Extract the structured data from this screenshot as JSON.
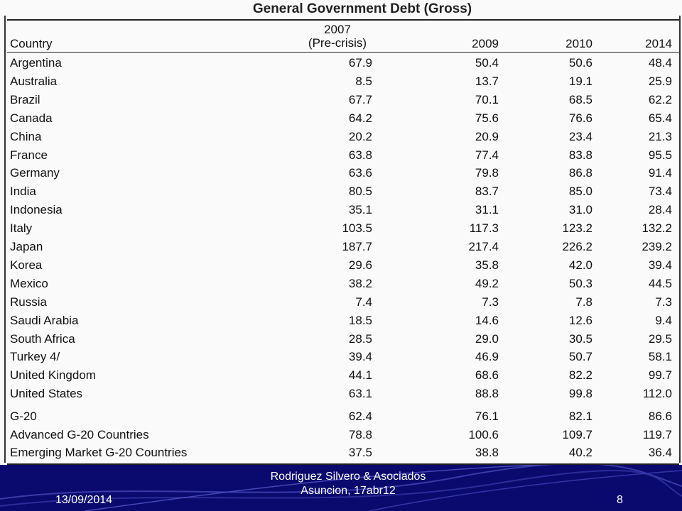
{
  "table": {
    "title": "General Government Debt (Gross)",
    "headers": {
      "country": "Country",
      "y2007_line1": "2007",
      "y2007_line2": "(Pre-crisis)",
      "y2009": "2009",
      "y2010": "2010",
      "y2014": "2014"
    },
    "rows": [
      {
        "country": "Argentina",
        "v": [
          "67.9",
          "50.4",
          "50.6",
          "48.4"
        ]
      },
      {
        "country": "Australia",
        "v": [
          "8.5",
          "13.7",
          "19.1",
          "25.9"
        ]
      },
      {
        "country": "Brazil",
        "v": [
          "67.7",
          "70.1",
          "68.5",
          "62.2"
        ]
      },
      {
        "country": "Canada",
        "v": [
          "64.2",
          "75.6",
          "76.6",
          "65.4"
        ]
      },
      {
        "country": "China",
        "v": [
          "20.2",
          "20.9",
          "23.4",
          "21.3"
        ]
      },
      {
        "country": "France",
        "v": [
          "63.8",
          "77.4",
          "83.8",
          "95.5"
        ]
      },
      {
        "country": "Germany",
        "v": [
          "63.6",
          "79.8",
          "86.8",
          "91.4"
        ]
      },
      {
        "country": "India",
        "v": [
          "80.5",
          "83.7",
          "85.0",
          "73.4"
        ]
      },
      {
        "country": "Indonesia",
        "v": [
          "35.1",
          "31.1",
          "31.0",
          "28.4"
        ]
      },
      {
        "country": "Italy",
        "v": [
          "103.5",
          "117.3",
          "123.2",
          "132.2"
        ]
      },
      {
        "country": "Japan",
        "v": [
          "187.7",
          "217.4",
          "226.2",
          "239.2"
        ]
      },
      {
        "country": "Korea",
        "v": [
          "29.6",
          "35.8",
          "42.0",
          "39.4"
        ]
      },
      {
        "country": "Mexico",
        "v": [
          "38.2",
          "49.2",
          "50.3",
          "44.5"
        ]
      },
      {
        "country": "Russia",
        "v": [
          "7.4",
          "7.3",
          "7.8",
          "7.3"
        ]
      },
      {
        "country": "Saudi Arabia",
        "v": [
          "18.5",
          "14.6",
          "12.6",
          "9.4"
        ]
      },
      {
        "country": "South Africa",
        "v": [
          "28.5",
          "29.0",
          "30.5",
          "29.5"
        ]
      },
      {
        "country": "Turkey 4/",
        "v": [
          "39.4",
          "46.9",
          "50.7",
          "58.1"
        ]
      },
      {
        "country": "United Kingdom",
        "v": [
          "44.1",
          "68.6",
          "82.2",
          "99.7"
        ]
      },
      {
        "country": "United States",
        "v": [
          "63.1",
          "88.8",
          "99.8",
          "112.0"
        ]
      },
      {
        "country": "G-20",
        "v": [
          "62.4",
          "76.1",
          "82.1",
          "86.6"
        ]
      },
      {
        "country": "Advanced G-20 Countries",
        "v": [
          "78.8",
          "100.6",
          "109.7",
          "119.7"
        ]
      },
      {
        "country": "Emerging Market G-20 Countries",
        "v": [
          "37.5",
          "38.8",
          "40.2",
          "36.4"
        ]
      }
    ]
  },
  "footer": {
    "date": "13/09/2014",
    "line1": "Rodriguez Silvero & Asociados",
    "line2": "Asuncion, 17abr12",
    "page": "8",
    "background_color": "#0a0a6e"
  }
}
